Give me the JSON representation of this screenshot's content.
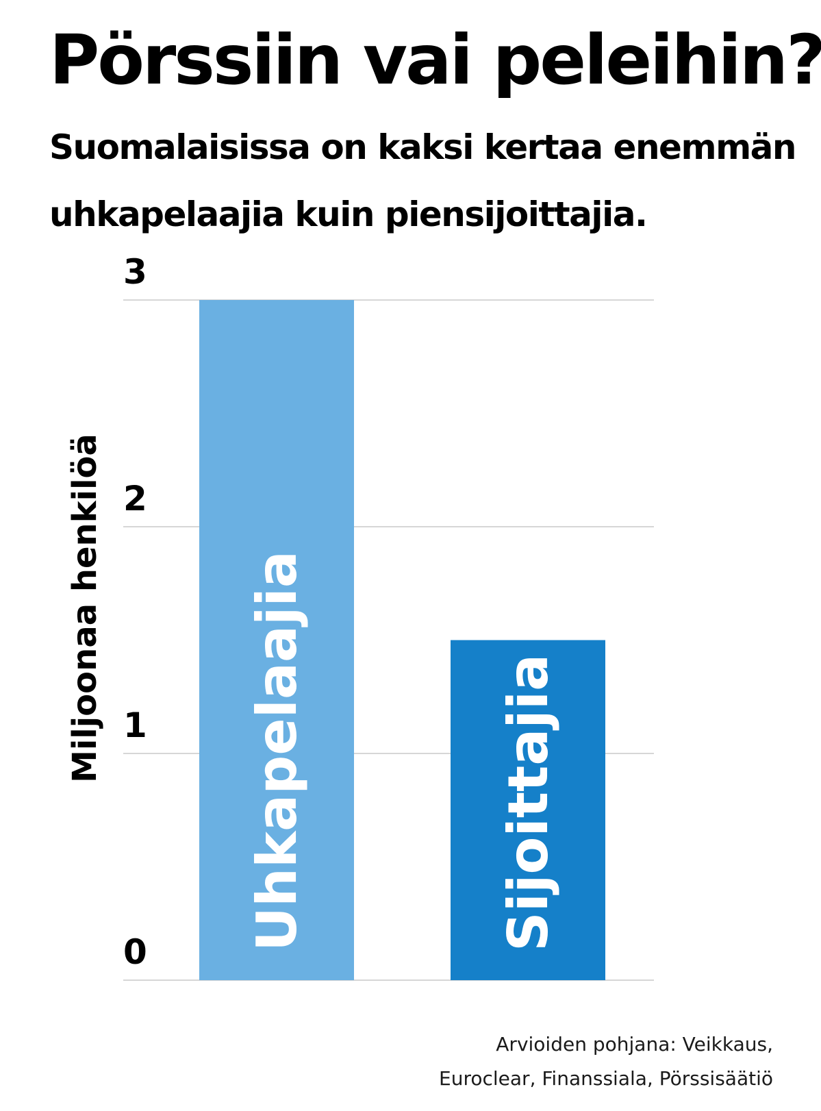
{
  "title": "Pörssiin vai peleihin?",
  "subtitle": {
    "line1": "Suomalaisissa on kaksi kertaa enemmän",
    "line2": "uhkapelaajia kuin piensijoittajia."
  },
  "source": {
    "line1": "Arvioiden pohjana: Veikkaus,",
    "line2": "Euroclear, Finanssiala, Pörssisäätiö"
  },
  "chart_data": {
    "type": "bar",
    "categories": [
      "Uhkapelaajia",
      "Sijoittajia"
    ],
    "values": [
      3.0,
      1.5
    ],
    "colors": [
      "#6ab0e2",
      "#1580c9"
    ],
    "label_color": "#ffffff",
    "ylabel": "Miljoonaa henkilöä",
    "ylim": [
      0,
      3
    ],
    "yticks": [
      0,
      1,
      2,
      3
    ],
    "grid": true,
    "gridline_color": "#c8c8c8"
  }
}
